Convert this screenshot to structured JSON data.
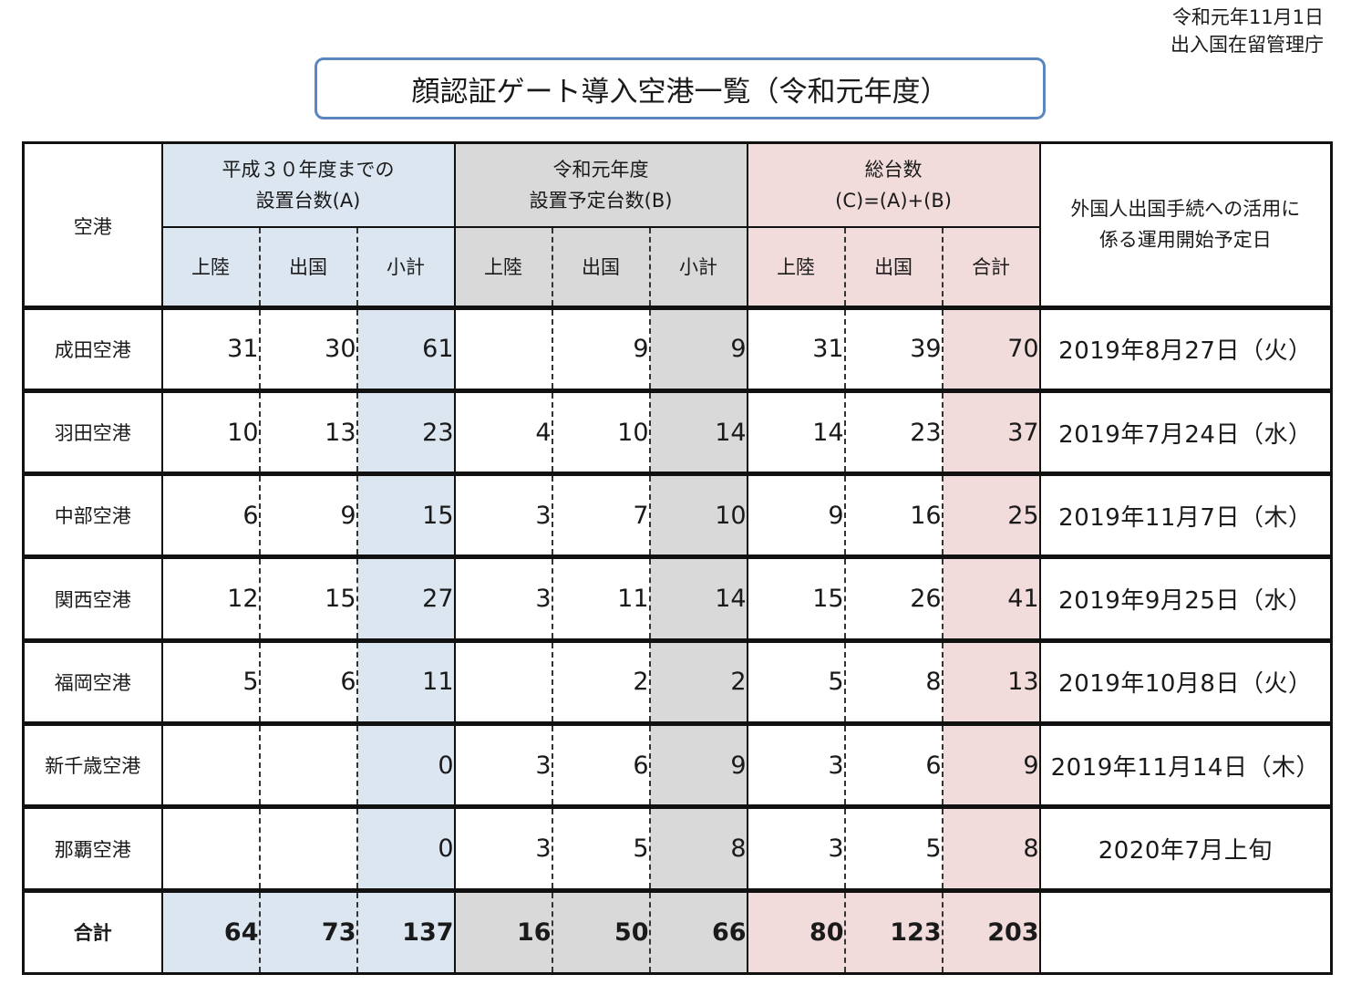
{
  "meta": {
    "date": "令和元年11月1日",
    "agency": "出入国在留管理庁"
  },
  "title": "顔認証ゲート導入空港一覧（令和元年度）",
  "headers": {
    "airport": "空港",
    "groupA_line1": "平成３０年度までの",
    "groupA_line2": "設置台数(A)",
    "groupB_line1": "令和元年度",
    "groupB_line2": "設置予定台数(B)",
    "groupC_line1": "総台数",
    "groupC_line2": "(C)=(A)+(B)",
    "date_line1": "外国人出国手続への活用に",
    "date_line2": "係る運用開始予定日",
    "landing": "上陸",
    "departure": "出国",
    "subtotal": "小計",
    "total": "合計"
  },
  "rows": [
    {
      "airport": "成田空港",
      "a_land": "31",
      "a_dep": "30",
      "a_sub": "61",
      "b_land": "",
      "b_dep": "9",
      "b_sub": "9",
      "c_land": "31",
      "c_dep": "39",
      "c_total": "70",
      "date": "2019年8月27日（火）"
    },
    {
      "airport": "羽田空港",
      "a_land": "10",
      "a_dep": "13",
      "a_sub": "23",
      "b_land": "4",
      "b_dep": "10",
      "b_sub": "14",
      "c_land": "14",
      "c_dep": "23",
      "c_total": "37",
      "date": "2019年7月24日（水）"
    },
    {
      "airport": "中部空港",
      "a_land": "6",
      "a_dep": "9",
      "a_sub": "15",
      "b_land": "3",
      "b_dep": "7",
      "b_sub": "10",
      "c_land": "9",
      "c_dep": "16",
      "c_total": "25",
      "date": "2019年11月7日（木）"
    },
    {
      "airport": "関西空港",
      "a_land": "12",
      "a_dep": "15",
      "a_sub": "27",
      "b_land": "3",
      "b_dep": "11",
      "b_sub": "14",
      "c_land": "15",
      "c_dep": "26",
      "c_total": "41",
      "date": "2019年9月25日（水）"
    },
    {
      "airport": "福岡空港",
      "a_land": "5",
      "a_dep": "6",
      "a_sub": "11",
      "b_land": "",
      "b_dep": "2",
      "b_sub": "2",
      "c_land": "5",
      "c_dep": "8",
      "c_total": "13",
      "date": "2019年10月8日（火）"
    },
    {
      "airport": "新千歳空港",
      "a_land": "",
      "a_dep": "",
      "a_sub": "0",
      "b_land": "3",
      "b_dep": "6",
      "b_sub": "9",
      "c_land": "3",
      "c_dep": "6",
      "c_total": "9",
      "date": "2019年11月14日（木）"
    },
    {
      "airport": "那覇空港",
      "a_land": "",
      "a_dep": "",
      "a_sub": "0",
      "b_land": "3",
      "b_dep": "5",
      "b_sub": "8",
      "c_land": "3",
      "c_dep": "5",
      "c_total": "8",
      "date": "2020年7月上旬"
    }
  ],
  "totals": {
    "label": "合計",
    "a_land": "64",
    "a_dep": "73",
    "a_sub": "137",
    "b_land": "16",
    "b_dep": "50",
    "b_sub": "66",
    "c_land": "80",
    "c_dep": "123",
    "c_total": "203",
    "date": ""
  },
  "colors": {
    "groupA": "#dce6f1",
    "groupB": "#d9d9d9",
    "groupC": "#f2dcdb",
    "title_border": "#5b87c1"
  }
}
